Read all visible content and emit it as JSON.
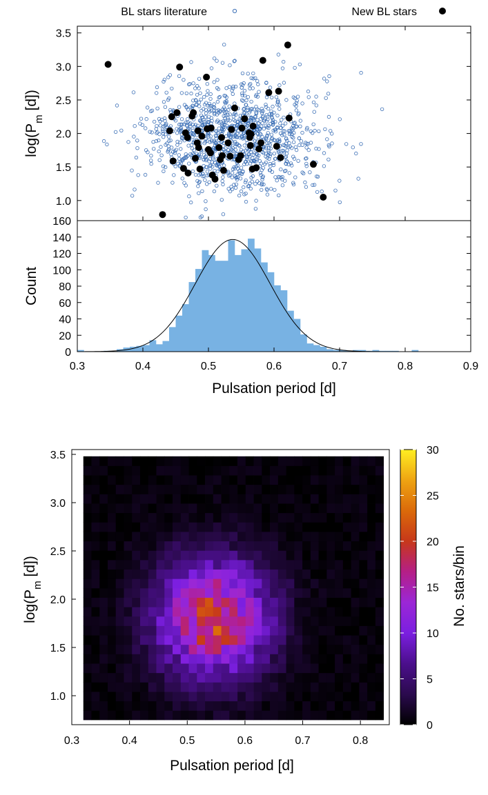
{
  "chart_data": [
    {
      "type": "scatter",
      "xlim": [
        0.3,
        0.9
      ],
      "ylim": [
        0.7,
        3.6
      ],
      "ylabel_main": "log(P",
      "ylabel_sub": "m",
      "ylabel_end": " [d])",
      "yticks": [
        1.0,
        1.5,
        2.0,
        2.5,
        3.0,
        3.5
      ],
      "ytick_labels": [
        "1.0",
        "1.5",
        "2.0",
        "2.5",
        "3.0",
        "3.5"
      ],
      "legend_position": "top",
      "grid": false,
      "series": [
        {
          "name": "BL stars literature",
          "marker": "open-circle",
          "color": "#3b6fb6",
          "distribution": {
            "x_mean": 0.54,
            "x_sd": 0.065,
            "y_mean": 1.95,
            "y_sd": 0.42,
            "count": 1180
          }
        },
        {
          "name": "New BL stars",
          "marker": "filled-circle",
          "color": "#000000",
          "x": [
            0.347,
            0.43,
            0.441,
            0.444,
            0.446,
            0.452,
            0.456,
            0.462,
            0.465,
            0.468,
            0.469,
            0.475,
            0.477,
            0.48,
            0.483,
            0.484,
            0.485,
            0.487,
            0.49,
            0.497,
            0.498,
            0.5,
            0.503,
            0.504,
            0.506,
            0.51,
            0.516,
            0.518,
            0.52,
            0.521,
            0.523,
            0.53,
            0.533,
            0.535,
            0.54,
            0.546,
            0.549,
            0.551,
            0.555,
            0.562,
            0.563,
            0.564,
            0.565,
            0.567,
            0.568,
            0.573,
            0.577,
            0.58,
            0.583,
            0.592,
            0.604,
            0.607,
            0.61,
            0.621,
            0.623,
            0.66,
            0.675
          ],
          "y": [
            3.03,
            0.79,
            2.04,
            2.25,
            1.59,
            2.31,
            2.99,
            1.48,
            2.01,
            1.94,
            1.41,
            2.26,
            2.31,
            1.63,
            1.86,
            2.04,
            1.79,
            1.47,
            1.96,
            2.84,
            2.07,
            1.76,
            1.71,
            2.08,
            1.38,
            1.32,
            1.79,
            1.61,
            1.94,
            1.67,
            1.45,
            1.86,
            1.66,
            2.06,
            2.38,
            1.61,
            1.67,
            2.08,
            2.22,
            2.01,
            1.94,
            1.82,
            1.99,
            1.47,
            2.11,
            1.49,
            1.77,
            1.86,
            3.09,
            2.61,
            1.81,
            2.63,
            1.64,
            3.32,
            2.23,
            1.54,
            1.05
          ]
        }
      ]
    },
    {
      "type": "bar",
      "xlim": [
        0.3,
        0.9
      ],
      "ylim": [
        0,
        160
      ],
      "ylabel": "Count",
      "xlabel": "Pulsation period [d]",
      "xticks": [
        0.3,
        0.4,
        0.5,
        0.6,
        0.7,
        0.8,
        0.9
      ],
      "xtick_labels": [
        "0.3",
        "0.4",
        "0.5",
        "0.6",
        "0.7",
        "0.8",
        "0.9"
      ],
      "yticks": [
        0,
        20,
        40,
        60,
        80,
        100,
        120,
        140,
        160
      ],
      "ytick_labels": [
        "0",
        "20",
        "40",
        "60",
        "80",
        "100",
        "120",
        "140",
        "160"
      ],
      "bin_start": 0.3,
      "bin_width": 0.01,
      "values": [
        2,
        0,
        0,
        0,
        1,
        0,
        3,
        5,
        6,
        7,
        8,
        14,
        9,
        13,
        30,
        44,
        58,
        85,
        101,
        124,
        118,
        111,
        111,
        136,
        118,
        125,
        138,
        126,
        109,
        97,
        81,
        75,
        50,
        40,
        21,
        10,
        8,
        6,
        3,
        2,
        2,
        1,
        2,
        2,
        1,
        2,
        1,
        1,
        1,
        0,
        0,
        2,
        0,
        0,
        0,
        0,
        0,
        0,
        0,
        0
      ],
      "bar_color": "#78b2e3",
      "fit_curve": {
        "type": "gaussian",
        "amplitude": 137,
        "mean": 0.537,
        "sd": 0.057,
        "color": "#000000"
      }
    },
    {
      "type": "heatmap",
      "xlim": [
        0.3,
        0.85
      ],
      "ylim": [
        0.7,
        3.55
      ],
      "xlabel": "Pulsation period [d]",
      "ylabel_main": "log(P",
      "ylabel_sub": "m",
      "ylabel_end": " [d])",
      "xticks": [
        0.3,
        0.4,
        0.5,
        0.6,
        0.7,
        0.8
      ],
      "xtick_labels": [
        "0.3",
        "0.4",
        "0.5",
        "0.6",
        "0.7",
        "0.8"
      ],
      "yticks": [
        1.0,
        1.5,
        2.0,
        2.5,
        3.0,
        3.5
      ],
      "ytick_labels": [
        "1.0",
        "1.5",
        "2.0",
        "2.5",
        "3.0",
        "3.5"
      ],
      "x_bins": [
        0.32,
        0.84,
        37
      ],
      "y_bins": [
        0.75,
        3.48,
        28
      ],
      "peak": {
        "x": 0.545,
        "y": 1.8,
        "value": 19
      },
      "colorbar": {
        "label": "No. stars/bin",
        "range": [
          0,
          30
        ],
        "ticks": [
          0,
          5,
          10,
          15,
          20,
          25,
          30
        ],
        "tick_labels": [
          "0",
          "5",
          "10",
          "15",
          "20",
          "25",
          "30"
        ],
        "colors": [
          "#000000",
          "#2b0a4e",
          "#4b0f8c",
          "#7b1fe0",
          "#9b27d6",
          "#b51f86",
          "#c7381a",
          "#db6a0a",
          "#eea412",
          "#ffee22"
        ]
      }
    }
  ]
}
